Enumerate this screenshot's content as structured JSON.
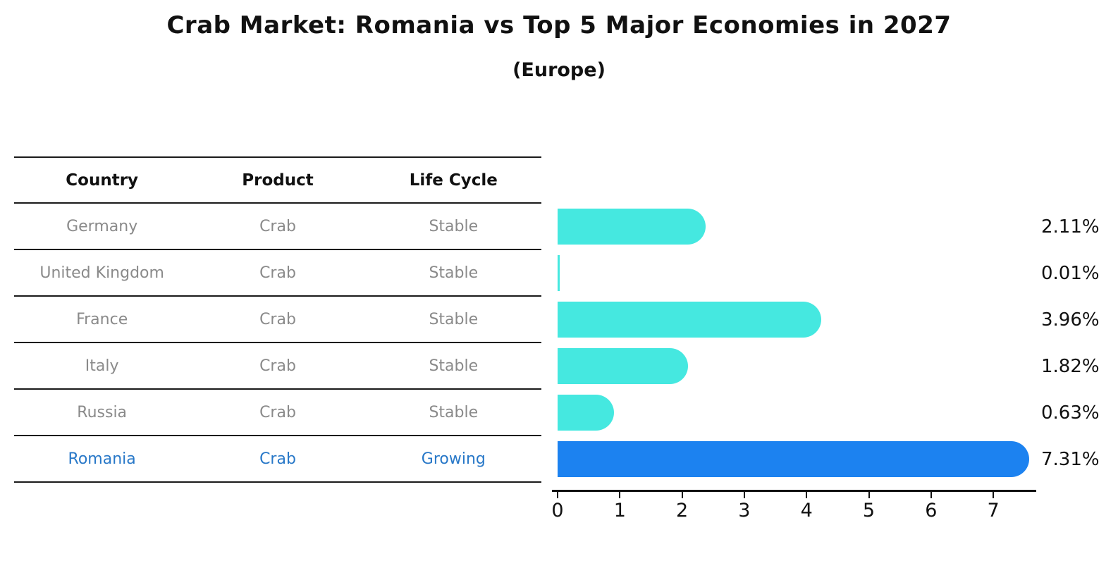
{
  "title": "Crab Market: Romania vs Top 5 Major Economies in 2027",
  "subtitle": "(Europe)",
  "table": {
    "columns": [
      "Country",
      "Product",
      "Life Cycle"
    ],
    "rows": [
      {
        "country": "Germany",
        "product": "Crab",
        "life_cycle": "Stable",
        "highlight": false
      },
      {
        "country": "United Kingdom",
        "product": "Crab",
        "life_cycle": "Stable",
        "highlight": false
      },
      {
        "country": "France",
        "product": "Crab",
        "life_cycle": "Stable",
        "highlight": false
      },
      {
        "country": "Italy",
        "product": "Crab",
        "life_cycle": "Stable",
        "highlight": false
      },
      {
        "country": "Russia",
        "product": "Crab",
        "life_cycle": "Stable",
        "highlight": false
      },
      {
        "country": "Romania",
        "product": "Crab",
        "life_cycle": "Growing",
        "highlight": true
      }
    ]
  },
  "chart_data": {
    "type": "bar",
    "orientation": "horizontal",
    "title": "Crab Market: Romania vs Top 5 Major Economies in 2027",
    "subtitle": "(Europe)",
    "categories": [
      "Germany",
      "United Kingdom",
      "France",
      "Italy",
      "Russia",
      "Romania"
    ],
    "values": [
      2.11,
      0.01,
      3.96,
      1.82,
      0.63,
      7.31
    ],
    "value_labels": [
      "2.11%",
      "0.01%",
      "3.96%",
      "1.82%",
      "0.63%",
      "7.31%"
    ],
    "unit": "percent",
    "x_ticks": [
      0,
      1,
      2,
      3,
      4,
      5,
      6,
      7
    ],
    "xlim": [
      0,
      7.7
    ],
    "grid": false,
    "legend": "none",
    "bar_color": "#45e8e0",
    "highlight_color": "#1c82f0",
    "highlight_index": 5,
    "highlight_edge_style": "dotted",
    "text_color": "#111111",
    "muted_text_color": "#8a8a8a",
    "highlight_text_color": "#2878c8"
  }
}
